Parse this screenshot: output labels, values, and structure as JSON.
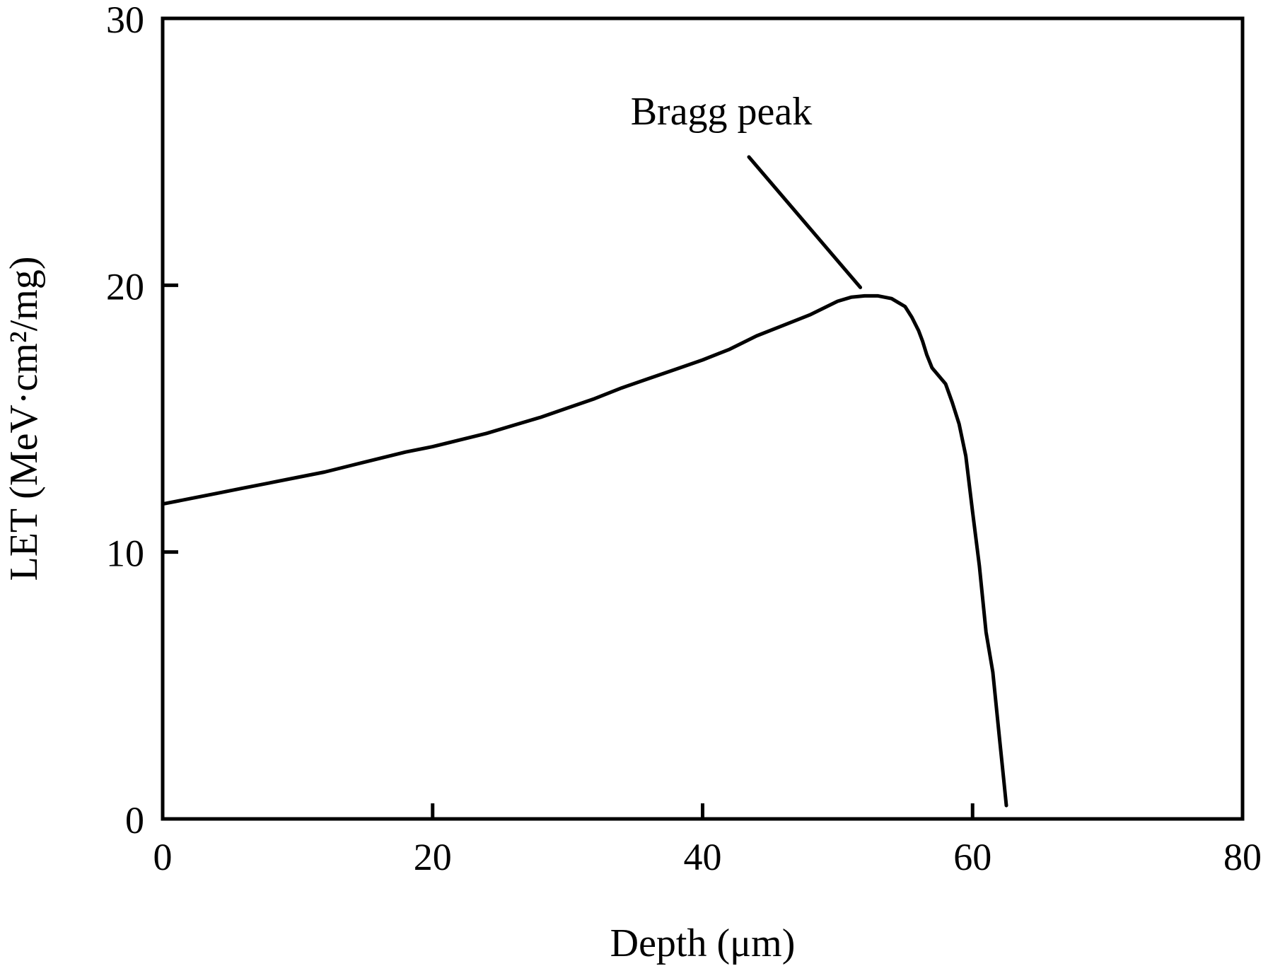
{
  "chart_data": {
    "type": "line",
    "xlabel": "Depth (μm)",
    "ylabel": "LET (MeV·cm²/mg)",
    "xlim": [
      0,
      80
    ],
    "ylim": [
      0,
      30
    ],
    "xticks": [
      0,
      20,
      40,
      60,
      80
    ],
    "yticks": [
      0,
      10,
      20,
      30
    ],
    "grid": false,
    "series": [
      {
        "x": [
          0,
          2,
          4,
          6,
          8,
          10,
          12,
          14,
          16,
          18,
          20,
          22,
          24,
          26,
          28,
          30,
          32,
          34,
          36,
          38,
          40,
          42,
          44,
          46,
          48,
          50,
          51,
          52,
          53,
          54,
          55,
          55.5,
          56,
          56.3,
          56.6,
          57,
          58,
          58.5,
          59,
          59.5,
          60,
          60.5,
          61,
          61.5,
          62,
          62.3,
          62.5
        ],
        "y": [
          11.8,
          12.0,
          12.2,
          12.4,
          12.6,
          12.8,
          13.0,
          13.25,
          13.5,
          13.75,
          13.95,
          14.2,
          14.45,
          14.75,
          15.05,
          15.4,
          15.75,
          16.15,
          16.5,
          16.85,
          17.2,
          17.6,
          18.1,
          18.5,
          18.9,
          19.4,
          19.55,
          19.6,
          19.6,
          19.5,
          19.2,
          18.8,
          18.3,
          17.9,
          17.4,
          16.9,
          16.3,
          15.6,
          14.8,
          13.6,
          11.5,
          9.5,
          7.0,
          5.5,
          3.0,
          1.5,
          0.5
        ]
      }
    ],
    "annotations": [
      {
        "text": "Bragg peak",
        "x": 52,
        "y": 19.6
      }
    ]
  }
}
